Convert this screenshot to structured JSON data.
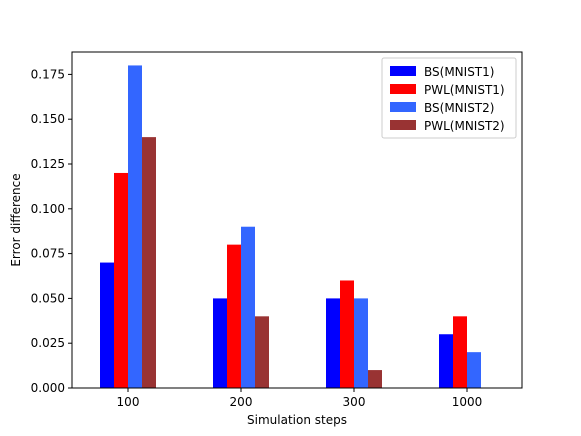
{
  "chart_data": {
    "type": "bar",
    "categories": [
      "100",
      "200",
      "300",
      "1000"
    ],
    "series": [
      {
        "name": "BS(MNIST1)",
        "values": [
          0.07,
          0.05,
          0.05,
          0.03
        ],
        "color": "#0000ff"
      },
      {
        "name": "PWL(MNIST1)",
        "values": [
          0.12,
          0.08,
          0.06,
          0.04
        ],
        "color": "#ff0000"
      },
      {
        "name": "BS(MNIST2)",
        "values": [
          0.18,
          0.09,
          0.05,
          0.02
        ],
        "color": "#3366ff"
      },
      {
        "name": "PWL(MNIST2)",
        "values": [
          0.14,
          0.04,
          0.01,
          0.0
        ],
        "color": "#993333"
      }
    ],
    "title": "",
    "xlabel": "Simulation steps",
    "ylabel": "Error difference",
    "ylim": [
      0,
      0.1875
    ],
    "yticks": [
      "0.000",
      "0.025",
      "0.050",
      "0.075",
      "0.100",
      "0.125",
      "0.150",
      "0.175"
    ],
    "grid": false,
    "legend_position": "top-right"
  }
}
